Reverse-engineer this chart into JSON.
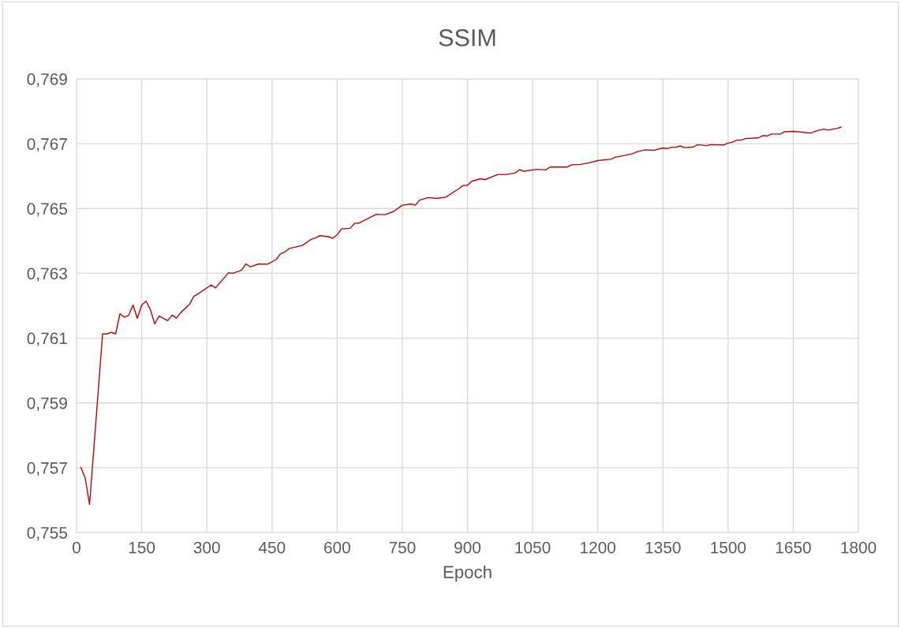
{
  "chart_data": {
    "type": "line",
    "title": "SSIM",
    "xlabel": "Epoch",
    "x": [
      10,
      20,
      30,
      60,
      70,
      80,
      90,
      100,
      110,
      120,
      130,
      140,
      150,
      160,
      170,
      180,
      190,
      210,
      220,
      230,
      240,
      260,
      270,
      280,
      310,
      320,
      350,
      360,
      380,
      390,
      400,
      420,
      440,
      460,
      470,
      480,
      490,
      520,
      540,
      550,
      560,
      580,
      590,
      600,
      610,
      630,
      640,
      650,
      690,
      710,
      730,
      750,
      770,
      780,
      790,
      810,
      830,
      850,
      880,
      890,
      900,
      910,
      930,
      940,
      970,
      990,
      1010,
      1020,
      1030,
      1060,
      1080,
      1090,
      1130,
      1140,
      1160,
      1180,
      1200,
      1230,
      1240,
      1280,
      1290,
      1310,
      1330,
      1350,
      1360,
      1370,
      1380,
      1390,
      1400,
      1420,
      1430,
      1450,
      1460,
      1490,
      1500,
      1510,
      1520,
      1530,
      1540,
      1570,
      1580,
      1590,
      1600,
      1620,
      1630,
      1650,
      1660,
      1690,
      1710,
      1720,
      1730,
      1750,
      1760
    ],
    "series": [
      {
        "color": "#c00000",
        "values": [
          0.75701,
          0.75668,
          0.75587,
          0.76113,
          0.76113,
          0.76118,
          0.76113,
          0.76175,
          0.76165,
          0.7617,
          0.76202,
          0.76161,
          0.76202,
          0.76214,
          0.76188,
          0.76144,
          0.76168,
          0.76154,
          0.76171,
          0.76162,
          0.76179,
          0.76204,
          0.76229,
          0.76237,
          0.76264,
          0.76255,
          0.76302,
          0.763,
          0.7631,
          0.76329,
          0.7632,
          0.76329,
          0.76328,
          0.76343,
          0.76361,
          0.76366,
          0.76377,
          0.76386,
          0.76405,
          0.76409,
          0.76416,
          0.76413,
          0.76408,
          0.76419,
          0.76437,
          0.76439,
          0.76454,
          0.76455,
          0.76482,
          0.76481,
          0.76491,
          0.7651,
          0.76514,
          0.7651,
          0.76526,
          0.76534,
          0.76531,
          0.76535,
          0.76561,
          0.76571,
          0.76572,
          0.76584,
          0.76592,
          0.76589,
          0.76605,
          0.76605,
          0.7661,
          0.7662,
          0.76615,
          0.76621,
          0.76619,
          0.76628,
          0.76628,
          0.76635,
          0.76636,
          0.76641,
          0.76648,
          0.76652,
          0.76658,
          0.76669,
          0.76675,
          0.76681,
          0.7668,
          0.76687,
          0.76685,
          0.76689,
          0.76689,
          0.76693,
          0.76688,
          0.7669,
          0.76697,
          0.76694,
          0.76697,
          0.76696,
          0.76702,
          0.76705,
          0.76711,
          0.76711,
          0.76716,
          0.76718,
          0.76725,
          0.76724,
          0.7673,
          0.7673,
          0.76737,
          0.76738,
          0.76737,
          0.76733,
          0.76742,
          0.76745,
          0.76742,
          0.76747,
          0.76751
        ]
      }
    ],
    "xlim": [
      0,
      1800
    ],
    "xticks": [
      0,
      150,
      300,
      450,
      600,
      750,
      900,
      1050,
      1200,
      1350,
      1500,
      1650,
      1800
    ],
    "ylim": [
      0.755,
      0.769
    ],
    "yticks": [
      {
        "value": 0.755,
        "label": "0,755"
      },
      {
        "value": 0.757,
        "label": "0,757"
      },
      {
        "value": 0.759,
        "label": "0,759"
      },
      {
        "value": 0.761,
        "label": "0,761"
      },
      {
        "value": 0.763,
        "label": "0,763"
      },
      {
        "value": 0.765,
        "label": "0,765"
      },
      {
        "value": 0.767,
        "label": "0,767"
      },
      {
        "value": 0.769,
        "label": "0,769"
      }
    ],
    "grid": true,
    "marker": "none",
    "line_style": "solid"
  }
}
